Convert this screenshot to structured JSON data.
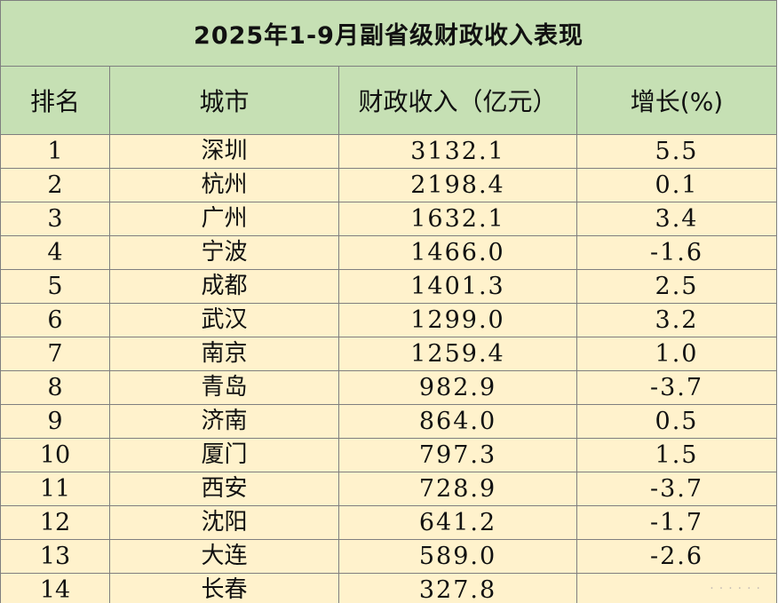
{
  "table": {
    "title": "2025年1-9月副省级财政收入表现",
    "headers": {
      "rank": "排名",
      "city": "城市",
      "revenue": "财政收入（亿元）",
      "growth": "增长(%)"
    },
    "rows": [
      {
        "rank": "1",
        "city": "深圳",
        "revenue": "3132.1",
        "growth": "5.5"
      },
      {
        "rank": "2",
        "city": "杭州",
        "revenue": "2198.4",
        "growth": "0.1"
      },
      {
        "rank": "3",
        "city": "广州",
        "revenue": "1632.1",
        "growth": "3.4"
      },
      {
        "rank": "4",
        "city": "宁波",
        "revenue": "1466.0",
        "growth": "-1.6"
      },
      {
        "rank": "5",
        "city": "成都",
        "revenue": "1401.3",
        "growth": "2.5"
      },
      {
        "rank": "6",
        "city": "武汉",
        "revenue": "1299.0",
        "growth": "3.2"
      },
      {
        "rank": "7",
        "city": "南京",
        "revenue": "1259.4",
        "growth": "1.0"
      },
      {
        "rank": "8",
        "city": "青岛",
        "revenue": "982.9",
        "growth": "-3.7"
      },
      {
        "rank": "9",
        "city": "济南",
        "revenue": "864.0",
        "growth": "0.5"
      },
      {
        "rank": "10",
        "city": "厦门",
        "revenue": "797.3",
        "growth": "1.5"
      },
      {
        "rank": "11",
        "city": "西安",
        "revenue": "728.9",
        "growth": "-3.7"
      },
      {
        "rank": "12",
        "city": "沈阳",
        "revenue": "641.2",
        "growth": "-1.7"
      },
      {
        "rank": "13",
        "city": "大连",
        "revenue": "589.0",
        "growth": "-2.6"
      },
      {
        "rank": "14",
        "city": "长春",
        "revenue": "327.8",
        "growth": ""
      }
    ]
  },
  "watermark": {
    "text": "······"
  }
}
